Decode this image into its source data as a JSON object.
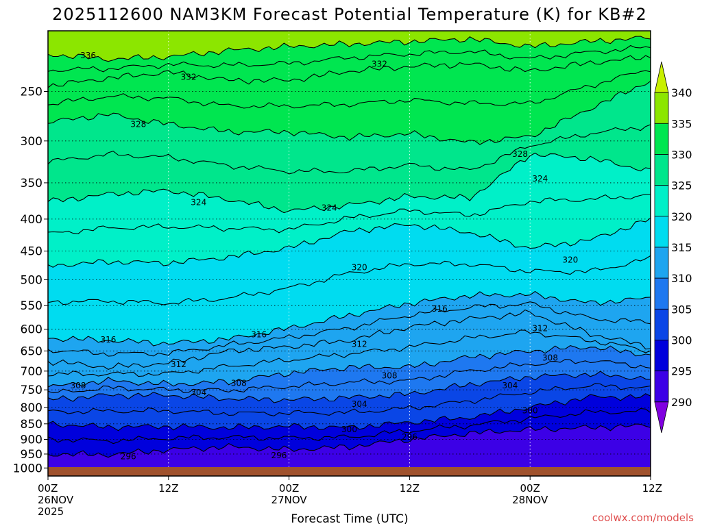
{
  "title": "2025112600 NAM3KM Forecast Potential Temperature (K) for KB#2",
  "credit": "coolwx.com/models",
  "chart_data": {
    "type": "heatmap",
    "title": "2025112600 NAM3KM Forecast Potential Temperature (K) for KB#2",
    "xlabel": "Forecast Time (UTC)",
    "ylabel": "",
    "x_range_hours": [
      0,
      60
    ],
    "y_range_hPa": [
      200,
      1030
    ],
    "y_scale": "log",
    "grid": true,
    "x_ticks": [
      {
        "hour": 0,
        "lines": [
          "00Z",
          "26NOV",
          "2025"
        ]
      },
      {
        "hour": 12,
        "lines": [
          "12Z"
        ]
      },
      {
        "hour": 24,
        "lines": [
          "00Z",
          "27NOV"
        ]
      },
      {
        "hour": 36,
        "lines": [
          "12Z"
        ]
      },
      {
        "hour": 48,
        "lines": [
          "00Z",
          "28NOV"
        ]
      },
      {
        "hour": 60,
        "lines": [
          "12Z"
        ]
      }
    ],
    "y_ticks": [
      250,
      300,
      350,
      400,
      450,
      500,
      550,
      600,
      650,
      700,
      750,
      800,
      850,
      900,
      950,
      1000
    ],
    "colorbar": {
      "levels": [
        290,
        295,
        300,
        305,
        310,
        315,
        320,
        325,
        330,
        335,
        340
      ],
      "colors": [
        "#8000e0",
        "#3c00e6",
        "#0000dc",
        "#0a46e6",
        "#1e78f0",
        "#1ea5f0",
        "#00dcf0",
        "#00f0c8",
        "#00e68c",
        "#00e650",
        "#8ce600",
        "#c8f000"
      ]
    },
    "ground_color": "#a0522d",
    "x_hours": [
      0,
      6,
      12,
      18,
      24,
      30,
      36,
      42,
      48,
      54,
      60
    ],
    "series": [
      {
        "value": 336,
        "pressure": [
          218,
          222,
          220,
          215,
          212,
          210,
          208,
          206,
          212,
          208,
          205
        ]
      },
      {
        "value": 332,
        "pressure": [
          245,
          238,
          233,
          240,
          240,
          232,
          228,
          226,
          232,
          225,
          220
        ]
      },
      {
        "value": 328,
        "pressure": [
          280,
          272,
          282,
          290,
          290,
          296,
          292,
          302,
          295,
          266,
          240
        ]
      },
      {
        "value": 324,
        "pressure": [
          375,
          365,
          360,
          372,
          388,
          380,
          368,
          370,
          315,
          320,
          335
        ]
      },
      {
        "value": 320,
        "pressure": [
          475,
          468,
          470,
          460,
          445,
          418,
          408,
          420,
          445,
          432,
          400
        ]
      },
      {
        "value": 316,
        "pressure": [
          620,
          625,
          632,
          622,
          598,
          570,
          545,
          530,
          528,
          545,
          535
        ]
      },
      {
        "value": 312,
        "pressure": [
          675,
          690,
          680,
          650,
          640,
          625,
          595,
          578,
          565,
          610,
          640
        ]
      },
      {
        "value": 308,
        "pressure": [
          742,
          725,
          735,
          728,
          705,
          690,
          690,
          665,
          650,
          640,
          660
        ]
      },
      {
        "value": 304,
        "pressure": [
          778,
          765,
          765,
          775,
          778,
          772,
          762,
          735,
          715,
          708,
          720
        ]
      },
      {
        "value": 300,
        "pressure": [
          850,
          860,
          858,
          862,
          858,
          862,
          845,
          830,
          800,
          770,
          770
        ]
      },
      {
        "value": 296,
        "pressure": [
          950,
          952,
          935,
          925,
          935,
          925,
          900,
          880,
          868,
          862,
          855
        ]
      }
    ],
    "contour_labels": [
      {
        "value": "336",
        "hour": 4,
        "pressure": 219
      },
      {
        "value": "332",
        "hour": 14,
        "pressure": 237
      },
      {
        "value": "332",
        "hour": 33,
        "pressure": 226
      },
      {
        "value": "328",
        "hour": 9,
        "pressure": 282
      },
      {
        "value": "328",
        "hour": 47,
        "pressure": 315
      },
      {
        "value": "324",
        "hour": 15,
        "pressure": 376
      },
      {
        "value": "324",
        "hour": 28,
        "pressure": 384
      },
      {
        "value": "324",
        "hour": 49,
        "pressure": 345
      },
      {
        "value": "320",
        "hour": 31,
        "pressure": 478
      },
      {
        "value": "320",
        "hour": 52,
        "pressure": 465
      },
      {
        "value": "316",
        "hour": 6,
        "pressure": 624
      },
      {
        "value": "316",
        "hour": 21,
        "pressure": 612
      },
      {
        "value": "316",
        "hour": 39,
        "pressure": 557
      },
      {
        "value": "312",
        "hour": 13,
        "pressure": 683
      },
      {
        "value": "312",
        "hour": 31,
        "pressure": 634
      },
      {
        "value": "312",
        "hour": 49,
        "pressure": 598
      },
      {
        "value": "308",
        "hour": 3,
        "pressure": 738
      },
      {
        "value": "308",
        "hour": 19,
        "pressure": 732
      },
      {
        "value": "308",
        "hour": 34,
        "pressure": 712
      },
      {
        "value": "308",
        "hour": 50,
        "pressure": 667
      },
      {
        "value": "304",
        "hour": 15,
        "pressure": 757
      },
      {
        "value": "304",
        "hour": 31,
        "pressure": 790
      },
      {
        "value": "304",
        "hour": 46,
        "pressure": 738
      },
      {
        "value": "300",
        "hour": 30,
        "pressure": 868
      },
      {
        "value": "300",
        "hour": 48,
        "pressure": 810
      },
      {
        "value": "296",
        "hour": 8,
        "pressure": 958
      },
      {
        "value": "296",
        "hour": 23,
        "pressure": 955
      },
      {
        "value": "296",
        "hour": 36,
        "pressure": 892
      }
    ]
  }
}
